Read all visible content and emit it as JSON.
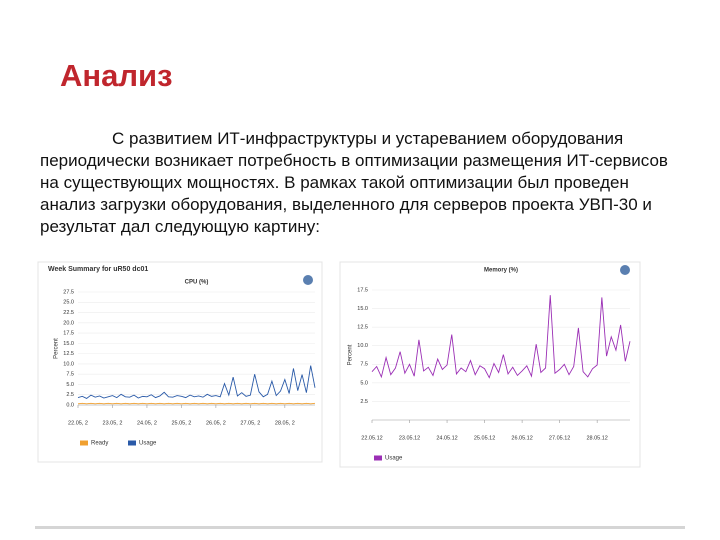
{
  "title": "Анализ",
  "paragraph": "С развитием ИТ-инфраструктуры и устареванием оборудования периодически возникает потребность в оптимизации размещения ИТ-сервисов на существующих мощностях. В рамках такой оптимизации был проведен анализ загрузки оборудования, выделенного для серверов проекта УВП-30 и результат дал следующую картину:",
  "chart_data": [
    {
      "type": "line",
      "subtitle": "Week Summary for uR50 dc01",
      "title": "CPU (%)",
      "y_label": "Percent",
      "categories": [
        "22.05, 2",
        null,
        null,
        null,
        null,
        null,
        null,
        null,
        "23.05, 2",
        null,
        null,
        null,
        null,
        null,
        null,
        null,
        "24.05, 2",
        null,
        null,
        null,
        null,
        null,
        null,
        null,
        "25.05, 2",
        null,
        null,
        null,
        null,
        null,
        null,
        null,
        "26.05, 2",
        null,
        null,
        null,
        null,
        null,
        null,
        null,
        "27.05, 2",
        null,
        null,
        null,
        null,
        null,
        null,
        null,
        "28.05, 2",
        null,
        null,
        null,
        null,
        null,
        null,
        null
      ],
      "series": [
        {
          "name": "Ready",
          "color": "#f0a030",
          "values": [
            0.3,
            0.4,
            0.3,
            0.4,
            0.3,
            0.4,
            0.3,
            0.4,
            0.3,
            0.4,
            0.3,
            0.4,
            0.3,
            0.4,
            0.3,
            0.4,
            0.3,
            0.4,
            0.3,
            0.4,
            0.3,
            0.4,
            0.3,
            0.4,
            0.3,
            0.4,
            0.3,
            0.4,
            0.3,
            0.4,
            0.3,
            0.4,
            0.3,
            0.4,
            0.3,
            0.4,
            0.3,
            0.4,
            0.3,
            0.4,
            0.3,
            0.4,
            0.3,
            0.4,
            0.3,
            0.4,
            0.3,
            0.4,
            0.3,
            0.4,
            0.3,
            0.4,
            0.3,
            0.4,
            0.3,
            0.4
          ]
        },
        {
          "name": "Usage",
          "color": "#2a5aa8",
          "values": [
            1.8,
            2.1,
            1.6,
            2.4,
            1.9,
            2.2,
            1.7,
            2.0,
            2.3,
            1.8,
            2.6,
            2.0,
            1.9,
            2.4,
            1.7,
            2.1,
            2.0,
            2.5,
            1.8,
            2.2,
            3.1,
            2.0,
            1.9,
            2.3,
            2.1,
            1.8,
            2.4,
            2.0,
            2.2,
            1.9,
            2.6,
            2.1,
            2.3,
            2.0,
            5.2,
            2.4,
            6.8,
            2.2,
            3.0,
            2.1,
            2.4,
            7.5,
            3.2,
            2.0,
            2.6,
            5.8,
            2.3,
            3.4,
            6.2,
            2.8,
            8.9,
            3.5,
            7.4,
            3.0,
            9.6,
            4.2
          ]
        }
      ],
      "ylim": [
        0,
        27.5
      ],
      "yticks": [
        {
          "value": 0,
          "label": "0.0"
        },
        2.5,
        {
          "value": 5,
          "label": "5.0"
        },
        7.5,
        {
          "value": 10,
          "label": "10.0"
        },
        12.5,
        {
          "value": 15,
          "label": "15.0"
        },
        17.5,
        {
          "value": 20,
          "label": "20.0"
        },
        22.5,
        {
          "value": 25,
          "label": "25.0"
        },
        27.5
      ],
      "grid": true,
      "legend": "bottom"
    },
    {
      "type": "line",
      "title": "Memory (%)",
      "y_label": "Percent",
      "categories": [
        "22.05.12",
        null,
        null,
        null,
        null,
        null,
        null,
        null,
        "23.05.12",
        null,
        null,
        null,
        null,
        null,
        null,
        null,
        "24.05.12",
        null,
        null,
        null,
        null,
        null,
        null,
        null,
        "25.05.12",
        null,
        null,
        null,
        null,
        null,
        null,
        null,
        "26.05.12",
        null,
        null,
        null,
        null,
        null,
        null,
        null,
        "27.05.12",
        null,
        null,
        null,
        null,
        null,
        null,
        null,
        "28.05.12",
        null,
        null,
        null,
        null,
        null,
        null,
        null
      ],
      "series": [
        {
          "name": "Usage",
          "color": "#9b2fb5",
          "values": [
            6.5,
            7.2,
            5.8,
            8.4,
            6.1,
            7.0,
            9.2,
            6.3,
            7.5,
            5.9,
            10.8,
            6.6,
            7.1,
            6.0,
            8.2,
            6.8,
            7.4,
            11.5,
            6.2,
            7.0,
            6.5,
            8.0,
            6.1,
            7.3,
            6.9,
            5.7,
            7.6,
            6.4,
            8.8,
            6.2,
            7.1,
            6.0,
            6.6,
            7.3,
            5.9,
            10.2,
            6.4,
            7.0,
            16.8,
            6.3,
            6.8,
            7.5,
            6.1,
            7.2,
            12.4,
            6.5,
            5.8,
            6.9,
            7.4,
            16.5,
            8.6,
            11.2,
            9.4,
            12.8,
            7.9,
            10.6
          ]
        }
      ],
      "ylim": [
        0,
        17.5
      ],
      "yticks": [
        2.5,
        {
          "value": 5,
          "label": "5.0"
        },
        7.5,
        {
          "value": 10,
          "label": "10.0"
        },
        12.5,
        {
          "value": 15,
          "label": "15.0"
        },
        17.5
      ],
      "grid": true,
      "legend": "bottom"
    }
  ]
}
